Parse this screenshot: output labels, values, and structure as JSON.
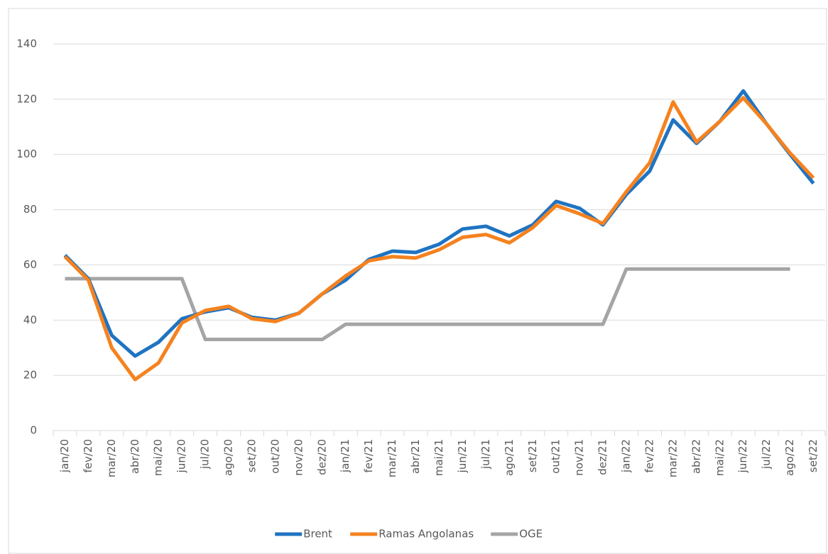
{
  "chart_data": {
    "type": "line",
    "categories": [
      "jan/20",
      "fev/20",
      "mar/20",
      "abr/20",
      "mai/20",
      "jun/20",
      "jul/20",
      "ago/20",
      "set/20",
      "out/20",
      "nov/20",
      "dez/20",
      "jan/21",
      "fev/21",
      "mar/21",
      "abr/21",
      "mai/21",
      "jun/21",
      "jul/21",
      "ago/21",
      "set/21",
      "out/21",
      "nov/21",
      "dez/21",
      "jan/22",
      "fev/22",
      "mar/22",
      "abr/22",
      "mai/22",
      "jun/22",
      "jul/22",
      "ago/22",
      "set/22"
    ],
    "series": [
      {
        "name": "Brent",
        "color": "#1f73c2",
        "values": [
          63.5,
          55,
          34.5,
          27,
          32,
          40.5,
          43,
          44.5,
          41,
          40,
          42.5,
          49.5,
          54.5,
          62,
          65,
          64.5,
          67.5,
          73,
          74,
          70.5,
          74.5,
          83,
          80.5,
          74.5,
          85.5,
          94,
          112.5,
          104,
          112,
          123,
          111,
          100,
          89.5
        ]
      },
      {
        "name": "Ramas Angolanas",
        "color": "#f5821f",
        "values": [
          63,
          54.5,
          30,
          18.5,
          24.5,
          39,
          43.5,
          45,
          40.5,
          39.5,
          42.5,
          49.5,
          56,
          61.5,
          63,
          62.5,
          65.5,
          70,
          71,
          68,
          73.5,
          81.5,
          78.5,
          75,
          86.5,
          97,
          119,
          104.5,
          112,
          120.5,
          111,
          100.5,
          91.5
        ]
      },
      {
        "name": "OGE",
        "color": "#a5a5a5",
        "values": [
          55,
          55,
          55,
          55,
          55,
          55,
          33,
          33,
          33,
          33,
          33,
          33,
          38.5,
          38.5,
          38.5,
          38.5,
          38.5,
          38.5,
          38.5,
          38.5,
          38.5,
          38.5,
          38.5,
          38.5,
          58.5,
          58.5,
          58.5,
          58.5,
          58.5,
          58.5,
          58.5,
          58.5,
          null
        ]
      }
    ],
    "ylim": [
      0,
      140
    ],
    "yticks": [
      0,
      20,
      40,
      60,
      80,
      100,
      120,
      140
    ],
    "grid": true,
    "legend": "bottom"
  }
}
